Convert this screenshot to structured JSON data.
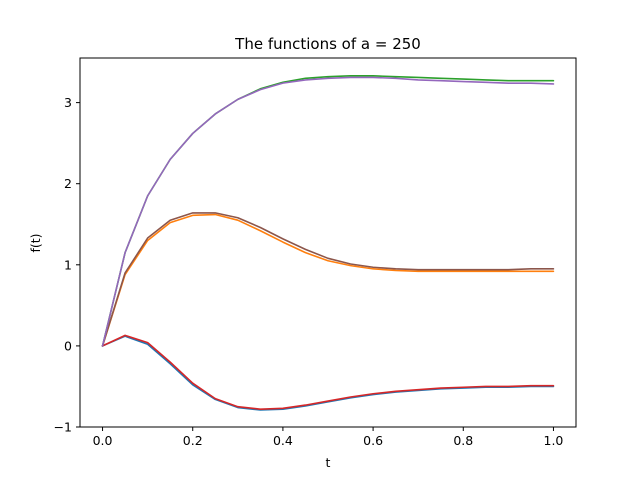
{
  "chart_data": {
    "type": "line",
    "title": "The functions of a = 250",
    "xlabel": "t",
    "ylabel": "f(t)",
    "xlim": [
      -0.05,
      1.05
    ],
    "ylim": [
      -1.0,
      3.55
    ],
    "xticks": [
      0.0,
      0.2,
      0.4,
      0.6,
      0.8,
      1.0
    ],
    "xtick_labels": [
      "0.0",
      "0.2",
      "0.4",
      "0.6",
      "0.8",
      "1.0"
    ],
    "yticks": [
      -1,
      0,
      1,
      2,
      3
    ],
    "ytick_labels": [
      "−1",
      "0",
      "1",
      "2",
      "3"
    ],
    "grid": false,
    "x": [
      0.0,
      0.05,
      0.1,
      0.15,
      0.2,
      0.25,
      0.3,
      0.35,
      0.4,
      0.45,
      0.5,
      0.55,
      0.6,
      0.65,
      0.7,
      0.75,
      0.8,
      0.85,
      0.9,
      0.95,
      1.0
    ],
    "series": [
      {
        "color": "#1f77b4",
        "values": [
          0.0,
          0.12,
          0.02,
          -0.22,
          -0.48,
          -0.66,
          -0.76,
          -0.79,
          -0.78,
          -0.74,
          -0.69,
          -0.64,
          -0.6,
          -0.57,
          -0.55,
          -0.53,
          -0.52,
          -0.51,
          -0.51,
          -0.5,
          -0.5
        ]
      },
      {
        "color": "#ff7f0e",
        "values": [
          0.0,
          0.88,
          1.3,
          1.52,
          1.61,
          1.62,
          1.55,
          1.42,
          1.28,
          1.15,
          1.05,
          0.99,
          0.95,
          0.93,
          0.92,
          0.92,
          0.92,
          0.92,
          0.92,
          0.92,
          0.92
        ]
      },
      {
        "color": "#2ca02c",
        "values": [
          0.0,
          1.15,
          1.85,
          2.3,
          2.62,
          2.86,
          3.04,
          3.17,
          3.25,
          3.3,
          3.32,
          3.33,
          3.33,
          3.32,
          3.31,
          3.3,
          3.29,
          3.28,
          3.27,
          3.27,
          3.27
        ]
      },
      {
        "color": "#d62728",
        "values": [
          0.0,
          0.13,
          0.04,
          -0.2,
          -0.46,
          -0.65,
          -0.75,
          -0.78,
          -0.77,
          -0.73,
          -0.68,
          -0.63,
          -0.59,
          -0.56,
          -0.54,
          -0.52,
          -0.51,
          -0.5,
          -0.5,
          -0.49,
          -0.49
        ]
      },
      {
        "color": "#8c564b",
        "values": [
          0.0,
          0.9,
          1.33,
          1.55,
          1.64,
          1.64,
          1.58,
          1.46,
          1.32,
          1.19,
          1.08,
          1.01,
          0.97,
          0.95,
          0.94,
          0.94,
          0.94,
          0.94,
          0.94,
          0.95,
          0.95
        ]
      },
      {
        "color": "#9467bd",
        "values": [
          0.0,
          1.15,
          1.85,
          2.3,
          2.62,
          2.86,
          3.04,
          3.16,
          3.24,
          3.28,
          3.3,
          3.31,
          3.31,
          3.3,
          3.28,
          3.27,
          3.26,
          3.25,
          3.24,
          3.24,
          3.23
        ]
      }
    ]
  }
}
